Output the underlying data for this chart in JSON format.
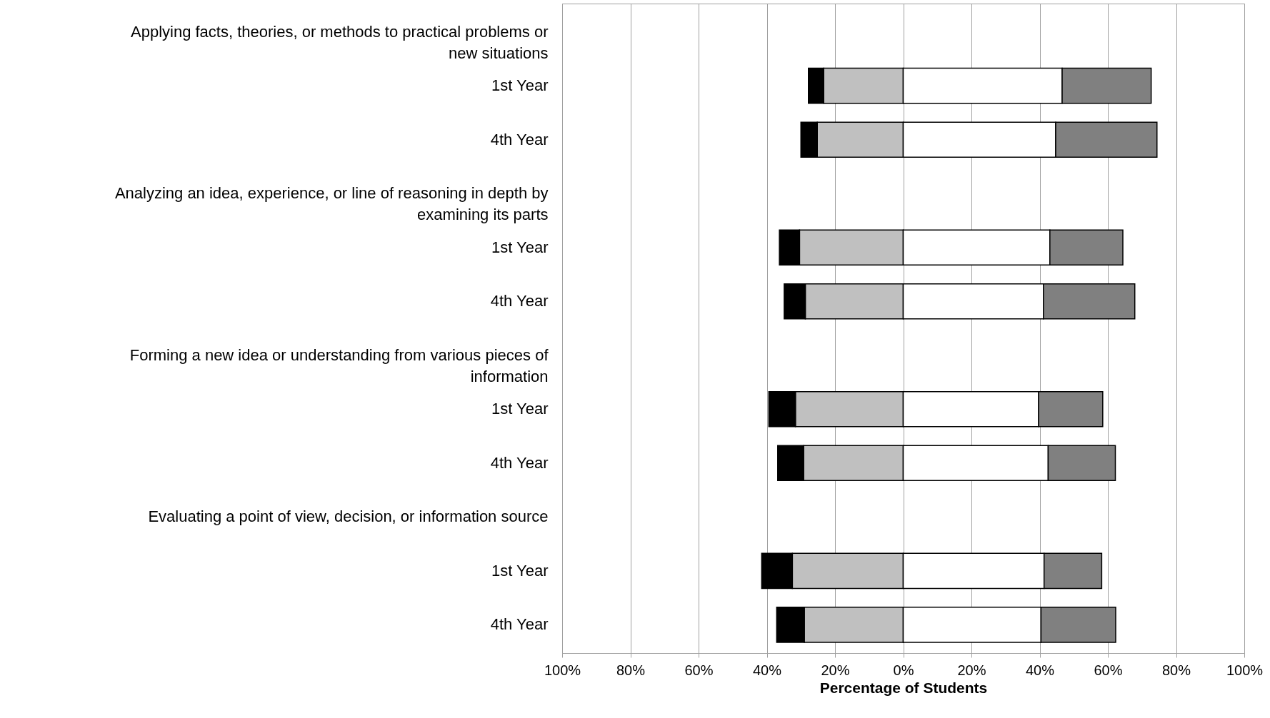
{
  "chart_data": {
    "type": "bar",
    "orientation": "horizontal",
    "stacked": true,
    "xlabel": "Percentage of Students",
    "categories": [
      "Applying facts, theories, or methods to practical problems or new situations",
      "1st Year",
      "4th Year",
      "Analyzing an idea, experience, or line of reasoning in depth by examining its parts",
      "1st Year",
      "4th Year",
      "Forming a new idea or understanding from various pieces of information",
      "1st Year",
      "4th Year",
      "Evaluating a point of view, decision, or information source",
      "1st Year",
      "4th Year"
    ],
    "series": [
      {
        "color": "#c0c0c0",
        "values": [
          null,
          -23.3,
          -25.2,
          null,
          -30.4,
          -28.7,
          null,
          -31.6,
          -29.2,
          null,
          -32.5,
          -29
        ]
      },
      {
        "color": "#000000",
        "values": [
          null,
          -4.5,
          -4.8,
          null,
          -5.9,
          -6.2,
          null,
          -7.8,
          -7.6,
          null,
          -9,
          -8.1
        ]
      },
      {
        "color": "#ffffff",
        "values": [
          null,
          46.6,
          44.7,
          null,
          43,
          41.1,
          null,
          39.7,
          42.5,
          null,
          41.3,
          40.4
        ]
      },
      {
        "color": "#808080",
        "values": [
          null,
          26.1,
          29.7,
          null,
          21.4,
          26.8,
          null,
          18.8,
          19.7,
          null,
          16.9,
          21.9
        ]
      }
    ],
    "xlim": [
      -100,
      100
    ],
    "xticks": [
      {
        "value": -100,
        "label": "100%"
      },
      {
        "value": -80,
        "label": "80%"
      },
      {
        "value": -60,
        "label": "60%"
      },
      {
        "value": -40,
        "label": "40%"
      },
      {
        "value": -20,
        "label": "20%"
      },
      {
        "value": 0,
        "label": "0%"
      },
      {
        "value": 20,
        "label": "20%"
      },
      {
        "value": 40,
        "label": "40%"
      },
      {
        "value": 60,
        "label": "60%"
      },
      {
        "value": 80,
        "label": "80%"
      },
      {
        "value": 100,
        "label": "100%"
      }
    ],
    "grid": "x"
  }
}
